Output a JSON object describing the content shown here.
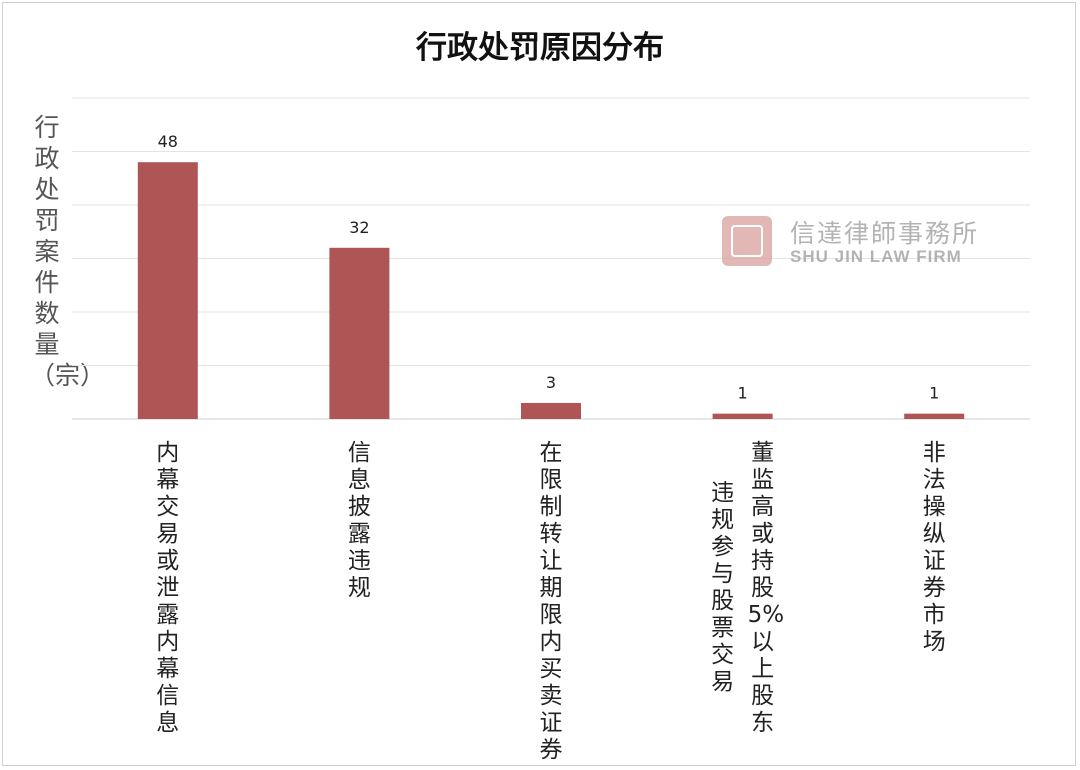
{
  "chart_data": {
    "type": "bar",
    "title": "行政处罚原因分布",
    "ylabel": "行政处罚案件数量（宗）",
    "xlabel": "",
    "categories": [
      "内幕交易或泄露内幕信息",
      "信息披露违规",
      "在限制转让期限内买卖证券",
      "董监高或持股5%以上股东违规参与股票交易",
      "非法操纵证券市场"
    ],
    "category_lines": [
      [
        "内幕交易或泄露内幕信息"
      ],
      [
        "信息披露违规"
      ],
      [
        "在限制转让期限内买卖证券"
      ],
      [
        "董监高或持股5%以上股东",
        "违规参与股票交易"
      ],
      [
        "非法操纵证券市场"
      ]
    ],
    "values": [
      48,
      32,
      3,
      1,
      1
    ],
    "ylim": [
      0,
      60
    ],
    "grid": true,
    "bar_color": "#b05555"
  },
  "watermark": {
    "name_cn": "信達律師事務所",
    "name_en": "SHU JIN LAW FIRM"
  }
}
